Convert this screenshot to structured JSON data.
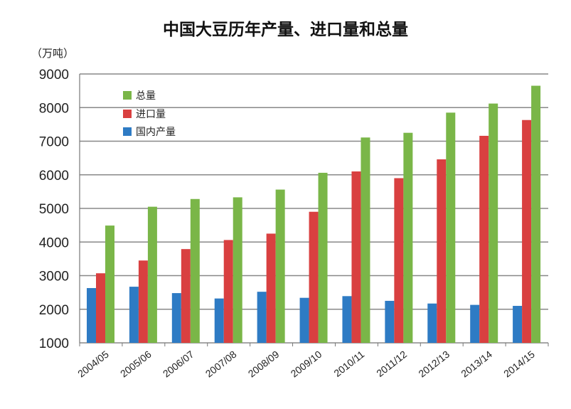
{
  "chart_data": {
    "type": "bar",
    "title": "中国大豆历年产量、进口量和总量",
    "ylabel": "（万吨）",
    "xlabel": "",
    "ylim": [
      1000,
      9000
    ],
    "yticks": [
      1000,
      2000,
      3000,
      4000,
      5000,
      6000,
      7000,
      8000,
      9000
    ],
    "grid": true,
    "legend_position": "top-left",
    "categories": [
      "2004/05",
      "2005/06",
      "2006/07",
      "2007/08",
      "2008/09",
      "2009/10",
      "2010/11",
      "2011/12",
      "2012/13",
      "2013/14",
      "2014/15"
    ],
    "series": [
      {
        "name": "国内产量",
        "color": "#2e7bc4",
        "values": [
          2630,
          2670,
          2480,
          2320,
          2520,
          2340,
          2390,
          2250,
          2170,
          2130,
          2100
        ]
      },
      {
        "name": "进口量",
        "color": "#d94040",
        "values": [
          3070,
          3450,
          3790,
          4060,
          4250,
          4900,
          6100,
          5900,
          6460,
          7160,
          7630
        ]
      },
      {
        "name": "总量",
        "color": "#7ab648",
        "values": [
          4490,
          5050,
          5280,
          5330,
          5560,
          6060,
          7110,
          7250,
          7850,
          8120,
          8650
        ]
      }
    ]
  }
}
